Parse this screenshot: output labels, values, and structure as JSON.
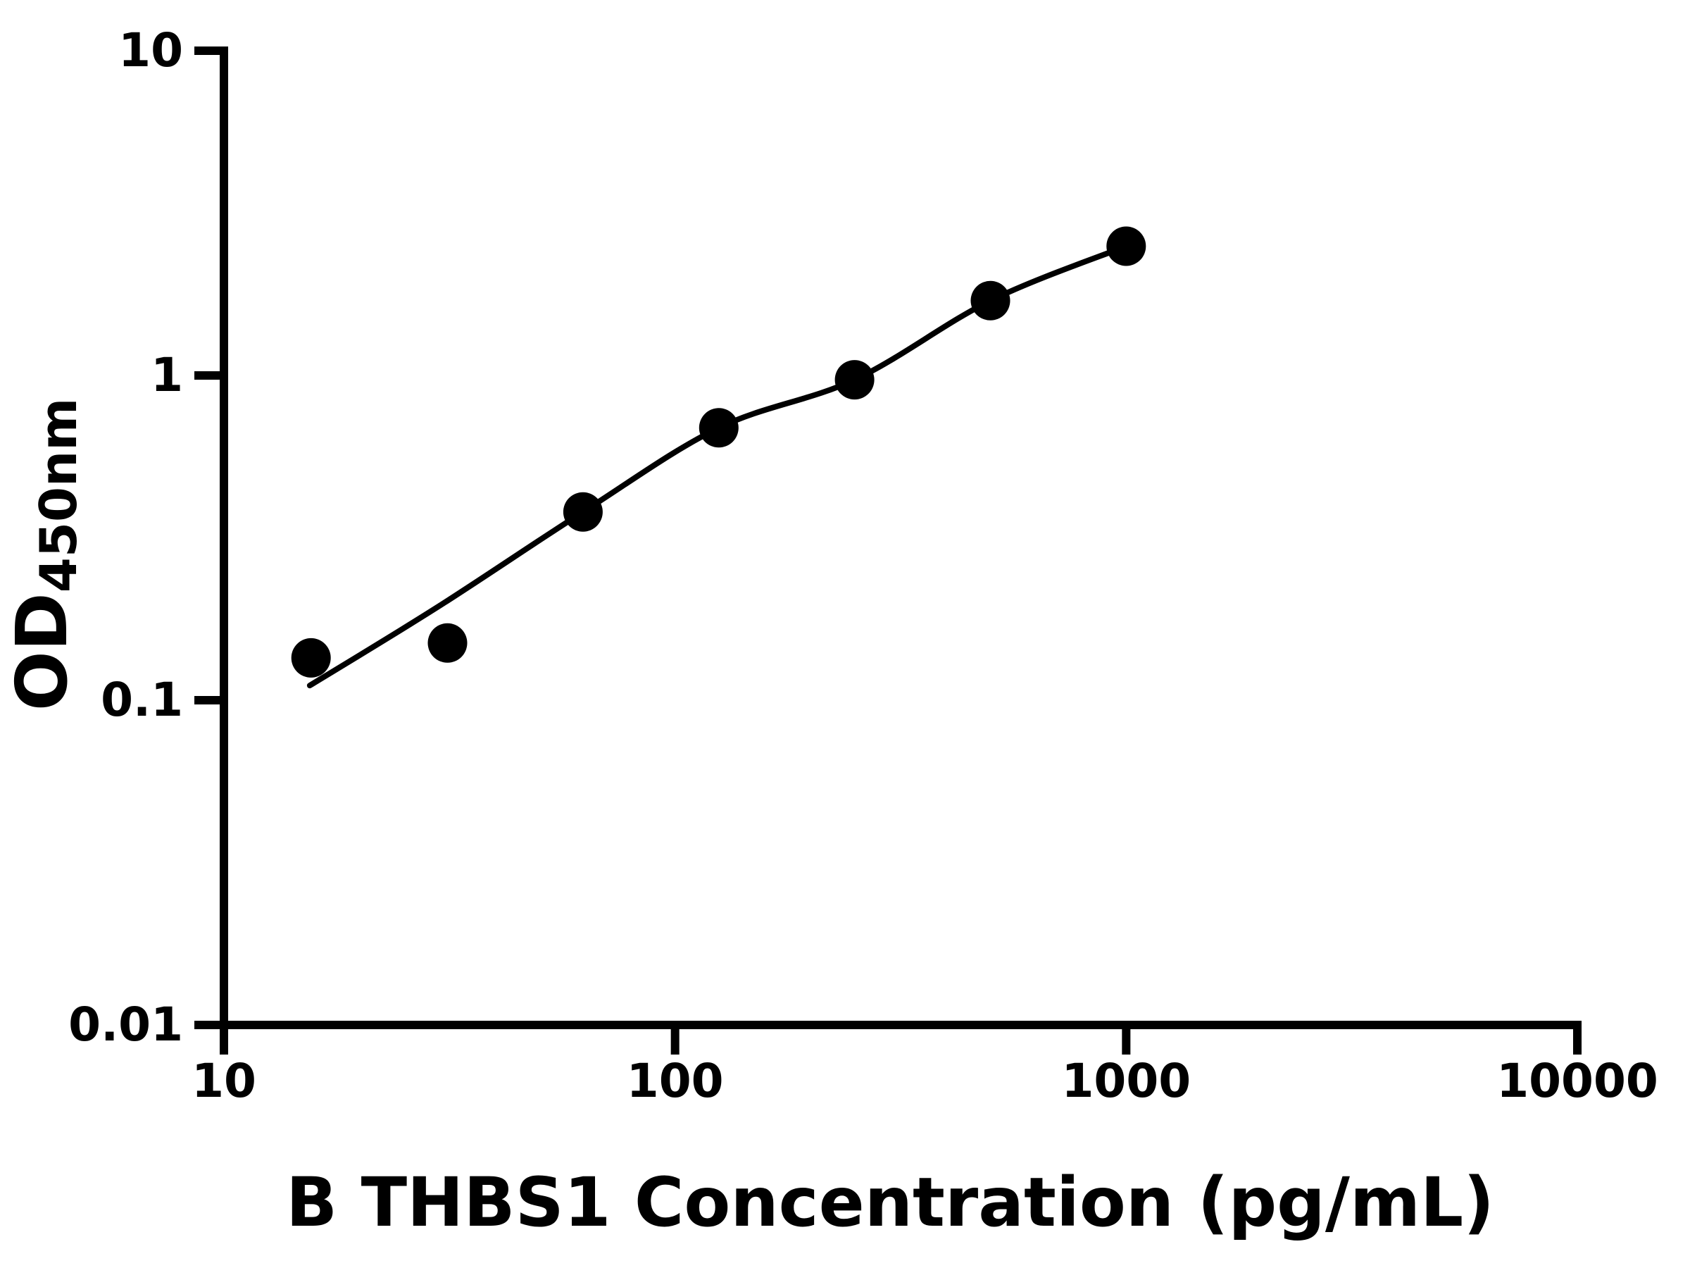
{
  "chart_data": {
    "type": "scatter",
    "title": "",
    "xlabel": "B THBS1 Concentration (pg/mL)",
    "ylabel_main": "OD",
    "ylabel_sub": "450nm",
    "x_scale": "log",
    "y_scale": "log",
    "xlim": [
      10,
      10000
    ],
    "ylim": [
      0.01,
      10
    ],
    "grid": "off",
    "legend": "none",
    "x_ticks": [
      {
        "value": 10,
        "label": "10"
      },
      {
        "value": 100,
        "label": "100"
      },
      {
        "value": 1000,
        "label": "1000"
      },
      {
        "value": 10000,
        "label": "10000"
      }
    ],
    "y_ticks": [
      {
        "value": 10,
        "label": "10"
      },
      {
        "value": 1,
        "label": "1"
      },
      {
        "value": 0.1,
        "label": "0.1"
      },
      {
        "value": 0.01,
        "label": "0.01"
      }
    ],
    "series": [
      {
        "name": "standard-curve-points",
        "marker": "filled-circle",
        "points": [
          {
            "x": 15.6,
            "y": 0.135
          },
          {
            "x": 31.3,
            "y": 0.15
          },
          {
            "x": 62.5,
            "y": 0.38
          },
          {
            "x": 125,
            "y": 0.69
          },
          {
            "x": 250,
            "y": 0.97
          },
          {
            "x": 500,
            "y": 1.7
          },
          {
            "x": 1000,
            "y": 2.5
          }
        ]
      }
    ],
    "fit_curve": [
      {
        "x": 15.5,
        "y": 0.111
      },
      {
        "x": 30,
        "y": 0.195
      },
      {
        "x": 62.5,
        "y": 0.38
      },
      {
        "x": 125,
        "y": 0.69
      },
      {
        "x": 250,
        "y": 0.97
      },
      {
        "x": 500,
        "y": 1.7
      },
      {
        "x": 1000,
        "y": 2.5
      }
    ],
    "colors": {
      "foreground": "#000000",
      "background": "#ffffff"
    }
  }
}
